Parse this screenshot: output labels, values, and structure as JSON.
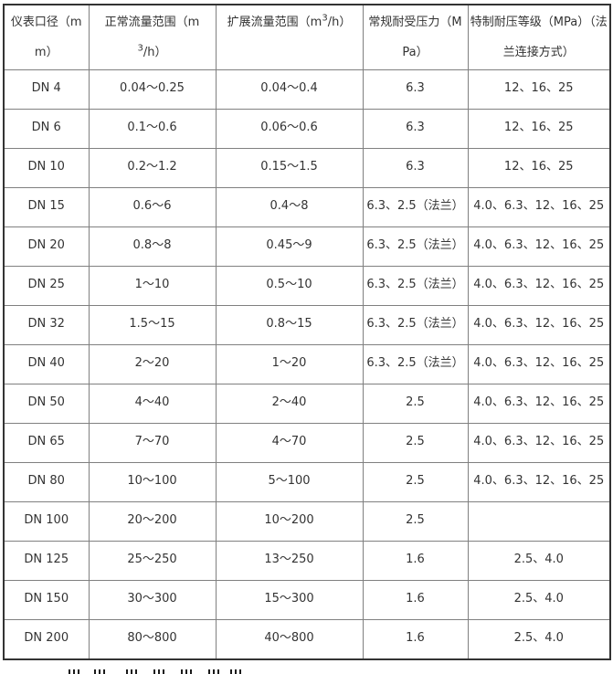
{
  "table": {
    "text_color": "#333333",
    "grid_color": "#808080",
    "outer_border_color": "#333333",
    "columns": [
      {
        "pre": "仪表口径（mm）",
        "sup": "",
        "post": ""
      },
      {
        "pre": "正常流量范围（m",
        "sup": "3",
        "post": "/h）"
      },
      {
        "pre": "扩展流量范围（m",
        "sup": "3",
        "post": "/h）"
      },
      {
        "pre": "常规耐受压力（MPa）",
        "sup": "",
        "post": ""
      },
      {
        "pre": "特制耐压等级（MPa）（法兰连接方式）",
        "sup": "",
        "post": ""
      }
    ],
    "rows": [
      [
        "DN 4",
        "0.04～0.25",
        "0.04～0.4",
        "6.3",
        "12、16、25"
      ],
      [
        "DN 6",
        "0.1～0.6",
        "0.06～0.6",
        "6.3",
        "12、16、25"
      ],
      [
        "DN 10",
        "0.2～1.2",
        "0.15～1.5",
        "6.3",
        "12、16、25"
      ],
      [
        "DN 15",
        "0.6～6",
        "0.4～8",
        "6.3、2.5（法兰）",
        "4.0、6.3、12、16、25"
      ],
      [
        "DN 20",
        "0.8～8",
        "0.45～9",
        "6.3、2.5（法兰）",
        "4.0、6.3、12、16、25"
      ],
      [
        "DN 25",
        "1～10",
        "0.5～10",
        "6.3、2.5（法兰）",
        "4.0、6.3、12、16、25"
      ],
      [
        "DN 32",
        "1.5～15",
        "0.8～15",
        "6.3、2.5（法兰）",
        "4.0、6.3、12、16、25"
      ],
      [
        "DN 40",
        "2～20",
        "1～20",
        "6.3、2.5（法兰）",
        "4.0、6.3、12、16、25"
      ],
      [
        "DN 50",
        "4～40",
        "2～40",
        "2.5",
        "4.0、6.3、12、16、25"
      ],
      [
        "DN 65",
        "7～70",
        "4～70",
        "2.5",
        "4.0、6.3、12、16、25"
      ],
      [
        "DN 80",
        "10～100",
        "5～100",
        "2.5",
        "4.0、6.3、12、16、25"
      ],
      [
        "DN 100",
        "20～200",
        "10～200",
        "2.5",
        ""
      ],
      [
        "DN 125",
        "25～250",
        "13～250",
        "1.6",
        "2.5、4.0"
      ],
      [
        "DN 150",
        "30～300",
        "15～300",
        "1.6",
        "2.5、4.0"
      ],
      [
        "DN 200",
        "80～800",
        "40～800",
        "1.6",
        "2.5、4.0"
      ]
    ]
  }
}
